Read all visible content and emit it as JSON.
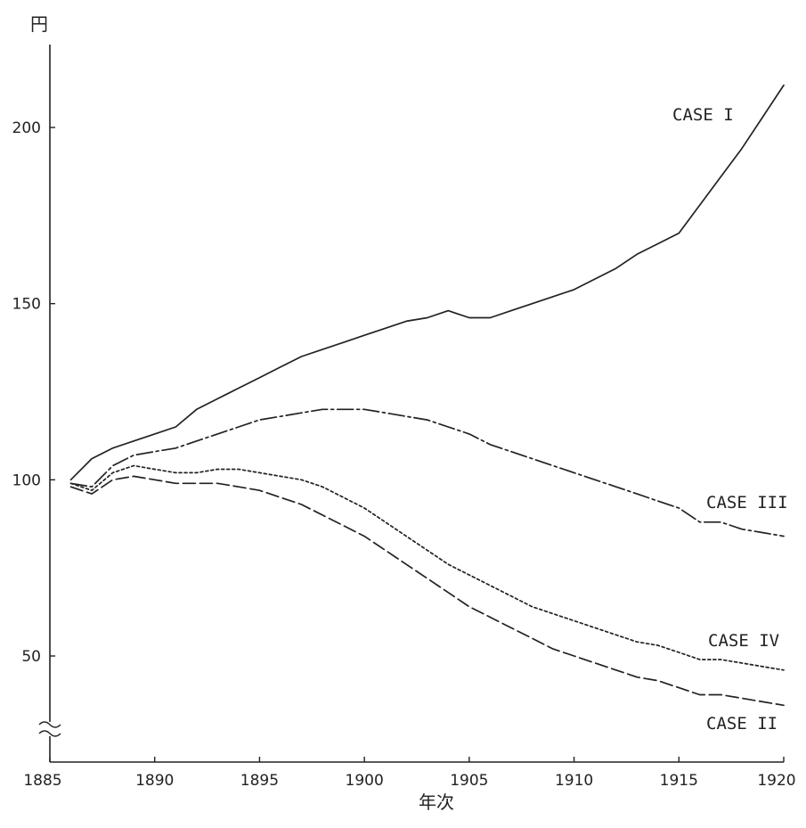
{
  "chart_data": {
    "type": "line",
    "title": "",
    "ylabel": "円",
    "xlabel": "年次",
    "xlim": [
      1885,
      1920
    ],
    "ylim": [
      30,
      220
    ],
    "y_axis_break": true,
    "xticks": [
      1885,
      1890,
      1895,
      1900,
      1905,
      1910,
      1915,
      1920
    ],
    "yticks": [
      50,
      100,
      150,
      200
    ],
    "grid": false,
    "legend": "inline labels at right end of each line",
    "series": [
      {
        "name": "CASE I",
        "style": "solid",
        "x": [
          1886,
          1887,
          1888,
          1889,
          1890,
          1891,
          1892,
          1893,
          1894,
          1895,
          1896,
          1897,
          1898,
          1899,
          1900,
          1901,
          1902,
          1903,
          1904,
          1905,
          1906,
          1907,
          1908,
          1909,
          1910,
          1911,
          1912,
          1913,
          1914,
          1915,
          1916,
          1917,
          1918,
          1919,
          1920
        ],
        "y": [
          100,
          106,
          109,
          111,
          113,
          115,
          120,
          123,
          126,
          129,
          132,
          135,
          137,
          139,
          141,
          143,
          145,
          146,
          148,
          146,
          146,
          148,
          150,
          152,
          154,
          157,
          160,
          164,
          167,
          170,
          178,
          186,
          194,
          203,
          212
        ]
      },
      {
        "name": "CASE III",
        "style": "dash-dot",
        "x": [
          1886,
          1887,
          1888,
          1889,
          1890,
          1891,
          1892,
          1893,
          1894,
          1895,
          1896,
          1897,
          1898,
          1899,
          1900,
          1901,
          1902,
          1903,
          1904,
          1905,
          1906,
          1907,
          1908,
          1909,
          1910,
          1911,
          1912,
          1913,
          1914,
          1915,
          1916,
          1917,
          1918,
          1919,
          1920
        ],
        "y": [
          99,
          98,
          104,
          107,
          108,
          109,
          111,
          113,
          115,
          117,
          118,
          119,
          120,
          120,
          120,
          119,
          118,
          117,
          115,
          113,
          110,
          108,
          106,
          104,
          102,
          100,
          98,
          96,
          94,
          92,
          88,
          88,
          86,
          85,
          84
        ]
      },
      {
        "name": "CASE IV",
        "style": "dotted",
        "x": [
          1886,
          1887,
          1888,
          1889,
          1890,
          1891,
          1892,
          1893,
          1894,
          1895,
          1896,
          1897,
          1898,
          1899,
          1900,
          1901,
          1902,
          1903,
          1904,
          1905,
          1906,
          1907,
          1908,
          1909,
          1910,
          1911,
          1912,
          1913,
          1914,
          1915,
          1916,
          1917,
          1918,
          1919,
          1920
        ],
        "y": [
          99,
          97,
          102,
          104,
          103,
          102,
          102,
          103,
          103,
          102,
          101,
          100,
          98,
          95,
          92,
          88,
          84,
          80,
          76,
          73,
          70,
          67,
          64,
          62,
          60,
          58,
          56,
          54,
          53,
          51,
          49,
          49,
          48,
          47,
          46
        ]
      },
      {
        "name": "CASE II",
        "style": "dashed",
        "x": [
          1886,
          1887,
          1888,
          1889,
          1890,
          1891,
          1892,
          1893,
          1894,
          1895,
          1896,
          1897,
          1898,
          1899,
          1900,
          1901,
          1902,
          1903,
          1904,
          1905,
          1906,
          1907,
          1908,
          1909,
          1910,
          1911,
          1912,
          1913,
          1914,
          1915,
          1916,
          1917,
          1918,
          1919,
          1920
        ],
        "y": [
          98,
          96,
          100,
          101,
          100,
          99,
          99,
          99,
          98,
          97,
          95,
          93,
          90,
          87,
          84,
          80,
          76,
          72,
          68,
          64,
          61,
          58,
          55,
          52,
          50,
          48,
          46,
          44,
          43,
          41,
          39,
          39,
          38,
          37,
          36
        ]
      }
    ]
  }
}
